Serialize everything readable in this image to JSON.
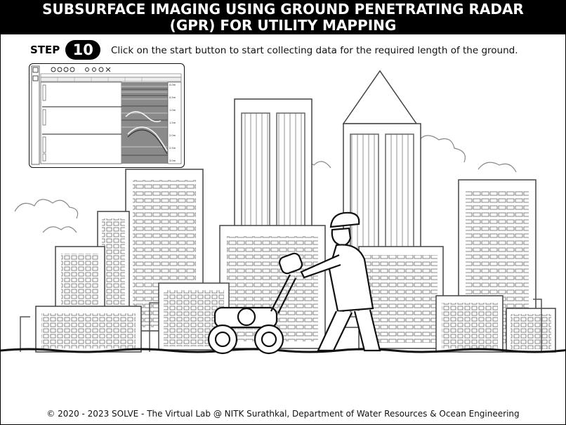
{
  "header": {
    "title_line1": "SUBSURFACE IMAGING USING GROUND PENETRATING RADAR",
    "title_line2": "(GPR) FOR UTILITY MAPPING"
  },
  "step": {
    "label": "STEP",
    "number": "10",
    "instruction": "Click on the start button to start collecting data for the required length of the ground."
  },
  "gpr_panel": {
    "depth_ticks": [
      "0.0m",
      "0.5m",
      "1.0m",
      "1.5m",
      "2.0m",
      "2.5m",
      "3.0m"
    ]
  },
  "footer": {
    "text": "© 2020 - 2023 SOLVE - The Virtual Lab @ NITK Surathkal, Department of Water Resources & Ocean Engineering"
  },
  "colors": {
    "header_bg": "#000000",
    "header_text": "#ffffff",
    "sketch_line": "#444444"
  }
}
